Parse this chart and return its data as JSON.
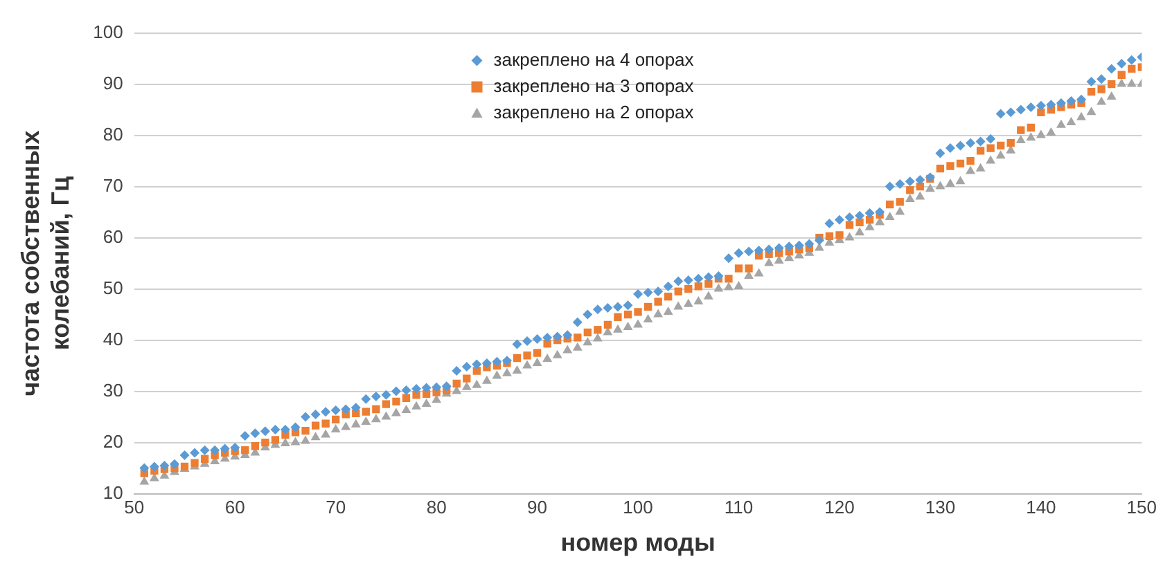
{
  "chart_data": {
    "type": "scatter",
    "xlabel": "номер моды",
    "ylabel": "частота собственных\nколебаний, Гц",
    "x": [
      51,
      52,
      53,
      54,
      55,
      56,
      57,
      58,
      59,
      60,
      61,
      62,
      63,
      64,
      65,
      66,
      67,
      68,
      69,
      70,
      71,
      72,
      73,
      74,
      75,
      76,
      77,
      78,
      79,
      80,
      81,
      82,
      83,
      84,
      85,
      86,
      87,
      88,
      89,
      90,
      91,
      92,
      93,
      94,
      95,
      96,
      97,
      98,
      99,
      100,
      101,
      102,
      103,
      104,
      105,
      106,
      107,
      108,
      109,
      110,
      111,
      112,
      113,
      114,
      115,
      116,
      117,
      118,
      119,
      120,
      121,
      122,
      123,
      124,
      125,
      126,
      127,
      128,
      129,
      130,
      131,
      132,
      133,
      134,
      135,
      136,
      137,
      138,
      139,
      140,
      141,
      142,
      143,
      144,
      145,
      146,
      147,
      148,
      149,
      150
    ],
    "xlim": [
      50,
      150
    ],
    "xticks": [
      50,
      60,
      70,
      80,
      90,
      100,
      110,
      120,
      130,
      140,
      150
    ],
    "ylim": [
      10,
      100
    ],
    "yticks": [
      10,
      20,
      30,
      40,
      50,
      60,
      70,
      80,
      90,
      100
    ],
    "grid": "y",
    "legend": "top",
    "series": [
      {
        "name": "закреплено на 4 опорах",
        "color": "#5b9bd5",
        "marker": "diamond",
        "values": [
          15,
          15.3,
          15.5,
          15.8,
          17.5,
          18,
          18.5,
          18.5,
          18.8,
          19,
          21.3,
          21.8,
          22.2,
          22.5,
          22.5,
          23,
          25,
          25.5,
          26,
          26.3,
          26.5,
          26.8,
          28.5,
          29,
          29.3,
          30,
          30.2,
          30.5,
          30.7,
          30.8,
          31,
          34,
          34.8,
          35.3,
          35.5,
          35.8,
          36,
          39.2,
          39.8,
          40.2,
          40.5,
          40.7,
          41,
          43.5,
          45,
          46,
          46.3,
          46.5,
          46.8,
          49,
          49.3,
          49.5,
          50.5,
          51.5,
          51.7,
          52,
          52.3,
          52.5,
          56,
          57,
          57.3,
          57.5,
          57.7,
          58,
          58.3,
          58.5,
          58.8,
          59.5,
          62.8,
          63.5,
          64,
          64.3,
          64.8,
          65,
          70,
          70.5,
          71,
          71.3,
          71.8,
          76.5,
          77.5,
          78,
          78.5,
          78.8,
          79.3,
          84.2,
          84.5,
          85,
          85.5,
          85.8,
          86,
          86.3,
          86.7,
          87,
          90.5,
          91,
          93,
          94,
          94.7,
          95.3
        ]
      },
      {
        "name": "закреплено на 3 опорах",
        "color": "#ed7d31",
        "marker": "square",
        "values": [
          14,
          14.5,
          14.8,
          15,
          15.3,
          16,
          16.8,
          17.5,
          18,
          18.3,
          18.5,
          19.3,
          20,
          20.5,
          21.5,
          22,
          22.3,
          23.3,
          23.7,
          24.5,
          25.5,
          25.7,
          26,
          26.5,
          27.5,
          28,
          28.7,
          29.3,
          29.5,
          29.8,
          30.2,
          31.5,
          32.5,
          34,
          34.7,
          35,
          35.5,
          36.5,
          37,
          37.5,
          39.3,
          40,
          40.3,
          40.5,
          41.5,
          42,
          43,
          44.5,
          45,
          45.5,
          46.5,
          47.5,
          48.5,
          49.5,
          50,
          50.5,
          51,
          52,
          52,
          54,
          54,
          56.5,
          56.8,
          57,
          57.3,
          57.7,
          58,
          60,
          60.3,
          60.5,
          62.5,
          63,
          63.5,
          64.5,
          66.5,
          67,
          69.3,
          70,
          71.5,
          73.5,
          74,
          74.5,
          75,
          77,
          77.5,
          78,
          78.5,
          81,
          81.5,
          84.5,
          85,
          85.5,
          86,
          86.3,
          88.5,
          89,
          90,
          91.8,
          93,
          93.3
        ]
      },
      {
        "name": "закреплено на 2 опорах",
        "color": "#a5a5a5",
        "marker": "triangle",
        "values": [
          12.3,
          13,
          13.5,
          14.2,
          14.8,
          15.3,
          15.8,
          16.3,
          16.8,
          17.2,
          17.5,
          18,
          19,
          19.5,
          19.8,
          20,
          20.3,
          21,
          21.5,
          22.5,
          23,
          23.5,
          24,
          24.5,
          25,
          25.7,
          26.3,
          27,
          27.5,
          28.3,
          29.5,
          30,
          30.8,
          31.2,
          32,
          33,
          33.5,
          34,
          35,
          35.5,
          36.3,
          37,
          38,
          38.5,
          39.5,
          40.3,
          41.5,
          42,
          42.5,
          43,
          44,
          45,
          45.5,
          46.5,
          47,
          47.5,
          48.5,
          50,
          50.3,
          50.5,
          52.5,
          53,
          55,
          55.5,
          56,
          56.5,
          57,
          58,
          59,
          59.5,
          60,
          61,
          62,
          63,
          64,
          65,
          67.5,
          68,
          69.5,
          70,
          70.5,
          71,
          73,
          73.5,
          75,
          76,
          77,
          79,
          79.5,
          80,
          80.5,
          82,
          82.5,
          83.5,
          84.5,
          86.5,
          87.5,
          90,
          90,
          90
        ]
      }
    ]
  }
}
